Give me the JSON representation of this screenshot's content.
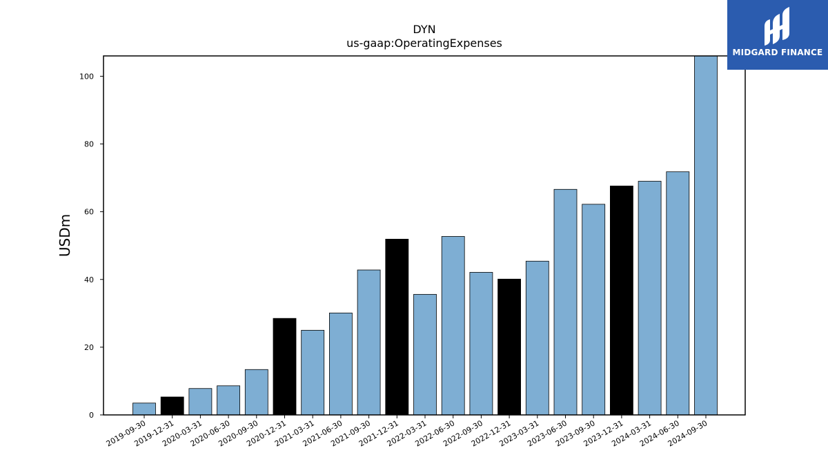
{
  "logo": {
    "text": "MIDGARD FINANCE",
    "background": "#2b5caf"
  },
  "chart_data": {
    "type": "bar",
    "title": "DYN",
    "subtitle": "us-gaap:OperatingExpenses",
    "xlabel": "",
    "ylabel": "USDm",
    "ylim": [
      0,
      106
    ],
    "yticks": [
      0,
      20,
      40,
      60,
      80,
      100
    ],
    "grid": false,
    "categories": [
      "2019-09-30",
      "2019-12-31",
      "2020-03-31",
      "2020-06-30",
      "2020-09-30",
      "2020-12-31",
      "2021-03-31",
      "2021-06-30",
      "2021-09-30",
      "2021-12-31",
      "2022-03-31",
      "2022-06-30",
      "2022-09-30",
      "2022-12-31",
      "2023-03-31",
      "2023-06-30",
      "2023-09-30",
      "2023-12-31",
      "2024-03-31",
      "2024-06-30",
      "2024-09-30"
    ],
    "values": [
      3.5,
      5.3,
      7.8,
      8.6,
      13.4,
      28.5,
      25.0,
      30.1,
      42.8,
      51.9,
      35.6,
      52.7,
      42.1,
      40.1,
      45.4,
      66.6,
      62.2,
      67.6,
      69.0,
      71.8,
      106.0
    ],
    "colors": {
      "quarter": "#7eaed3",
      "year_end": "#000000",
      "edge": "#000000"
    },
    "year_end_categories": [
      "2019-12-31",
      "2020-12-31",
      "2021-12-31",
      "2022-12-31",
      "2023-12-31"
    ]
  }
}
